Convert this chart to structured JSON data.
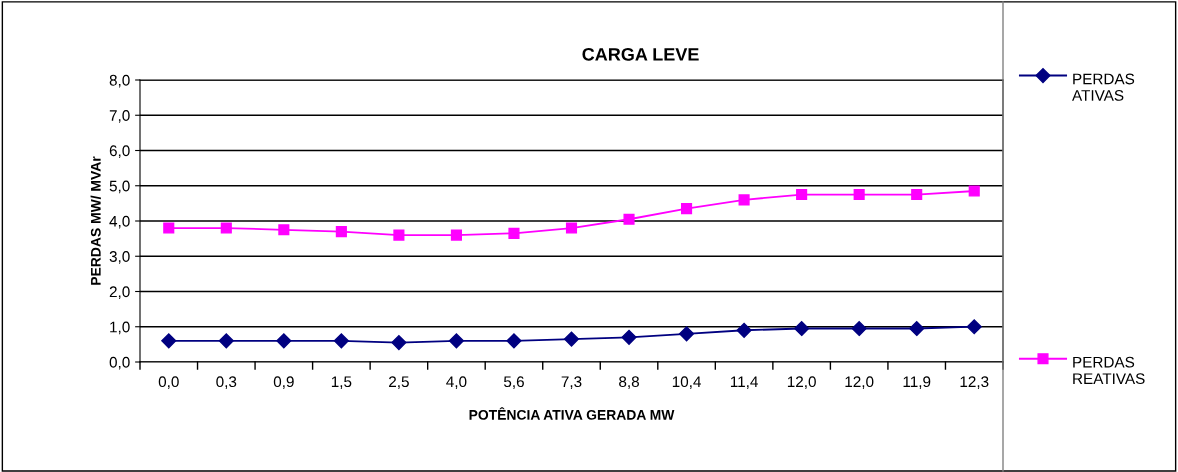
{
  "chart_data": {
    "type": "line",
    "title": "CARGA LEVE",
    "xlabel": "POTÊNCIA ATIVA GERADA MW",
    "ylabel": "PERDAS MW/ MVAr",
    "categories": [
      "0,0",
      "0,3",
      "0,9",
      "1,5",
      "2,5",
      "4,0",
      "5,6",
      "7,3",
      "8,8",
      "10,4",
      "11,4",
      "12,0",
      "12,0",
      "11,9",
      "12,3"
    ],
    "series": [
      {
        "name": "PERDAS ATIVAS",
        "color": "#000080",
        "marker": "diamond",
        "values": [
          0.6,
          0.6,
          0.6,
          0.6,
          0.55,
          0.6,
          0.6,
          0.65,
          0.7,
          0.8,
          0.9,
          0.95,
          0.95,
          0.95,
          1.0
        ]
      },
      {
        "name": "PERDAS REATIVAS",
        "color": "#ff00ff",
        "marker": "square",
        "values": [
          3.8,
          3.8,
          3.75,
          3.7,
          3.6,
          3.6,
          3.65,
          3.8,
          4.05,
          4.35,
          4.6,
          4.75,
          4.75,
          4.75,
          4.85
        ]
      }
    ],
    "ylim": [
      0,
      8
    ],
    "yticks": [
      {
        "value": 0,
        "label": "0,0"
      },
      {
        "value": 1,
        "label": "1,0"
      },
      {
        "value": 2,
        "label": "2,0"
      },
      {
        "value": 3,
        "label": "3,0"
      },
      {
        "value": 4,
        "label": "4,0"
      },
      {
        "value": 5,
        "label": "5,0"
      },
      {
        "value": 6,
        "label": "6,0"
      },
      {
        "value": 7,
        "label": "7,0"
      },
      {
        "value": 8,
        "label": "8,0"
      }
    ],
    "grid": "y",
    "legend": "right",
    "line_style": "solid"
  }
}
